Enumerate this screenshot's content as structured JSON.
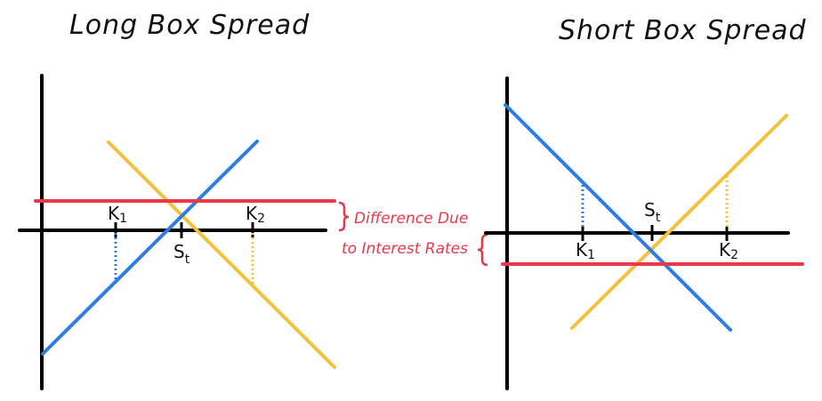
{
  "panels": {
    "long": {
      "title": "Long Box Spread",
      "k1_main": "K",
      "k1_sub": "1",
      "k2_main": "K",
      "k2_sub": "2",
      "st_main": "S",
      "st_sub": "t"
    },
    "short": {
      "title": "Short Box Spread",
      "k1_main": "K",
      "k1_sub": "1",
      "k2_main": "K",
      "k2_sub": "2",
      "st_main": "S",
      "st_sub": "t"
    }
  },
  "annotation": {
    "line1": "Difference Due",
    "line2": "to Interest Rates",
    "color": "#e8394a"
  },
  "colors": {
    "axis": "#000000",
    "red": "#e8394a",
    "blue": "#2f7de1",
    "yellow": "#f3c13a"
  }
}
